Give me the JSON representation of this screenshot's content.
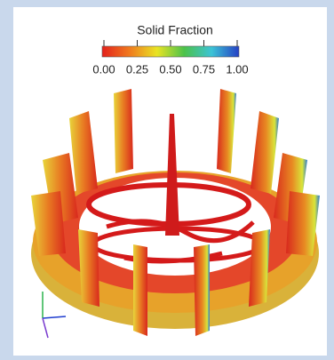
{
  "legend": {
    "title": "Solid Fraction",
    "ticks": [
      {
        "value": 0,
        "label": "0.00"
      },
      {
        "value": 0.25,
        "label": "0.25"
      },
      {
        "value": 0.5,
        "label": "0.50"
      },
      {
        "value": 0.75,
        "label": "0.75"
      },
      {
        "value": 1,
        "label": "1.00"
      }
    ]
  }
}
